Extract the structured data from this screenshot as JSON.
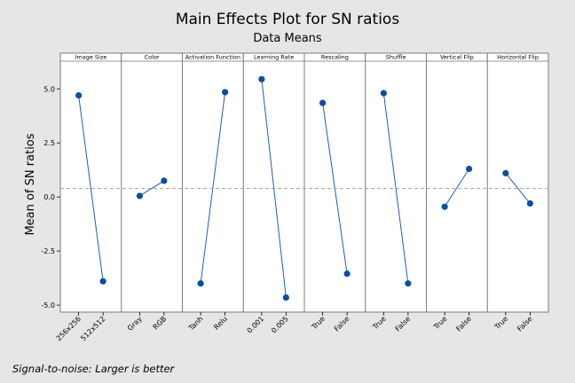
{
  "chart_data": {
    "type": "line",
    "title": "Main Effects Plot for SN ratios",
    "subtitle": "Data Means",
    "ylabel": "Mean of SN ratios",
    "footnote": "Signal-to-noise: Larger is better",
    "ylim": [
      -5.2,
      6.2
    ],
    "yticks": [
      5.0,
      2.5,
      0.0,
      -2.5,
      -5.0
    ],
    "ytick_labels": [
      "5.0",
      "2.5",
      "0.0",
      "-2.5",
      "-5.0"
    ],
    "reference_line": 0.4,
    "series_color": "#1f5fb4",
    "marker_color": "#0b4fa0",
    "reference_color": "#9a9a9a",
    "panels": [
      {
        "factor": "Image Size",
        "levels": [
          "256x256",
          "512x512"
        ],
        "values": [
          4.7,
          -3.9
        ]
      },
      {
        "factor": "Color",
        "levels": [
          "Gray",
          "RGB"
        ],
        "values": [
          0.05,
          0.75
        ]
      },
      {
        "factor": "Activation Function",
        "levels": [
          "Tanh",
          "Relu"
        ],
        "values": [
          -4.0,
          4.85
        ]
      },
      {
        "factor": "Learning Rate",
        "levels": [
          "0.001",
          "0.005"
        ],
        "values": [
          5.45,
          -4.65
        ]
      },
      {
        "factor": "Rescaling",
        "levels": [
          "True",
          "False"
        ],
        "values": [
          4.35,
          -3.55
        ]
      },
      {
        "factor": "Shuffle",
        "levels": [
          "True",
          "False"
        ],
        "values": [
          4.8,
          -4.0
        ]
      },
      {
        "factor": "Vertical Flip",
        "levels": [
          "True",
          "False"
        ],
        "values": [
          -0.45,
          1.3
        ]
      },
      {
        "factor": "Horizontal Flip",
        "levels": [
          "True",
          "False"
        ],
        "values": [
          1.1,
          -0.3
        ]
      }
    ]
  }
}
